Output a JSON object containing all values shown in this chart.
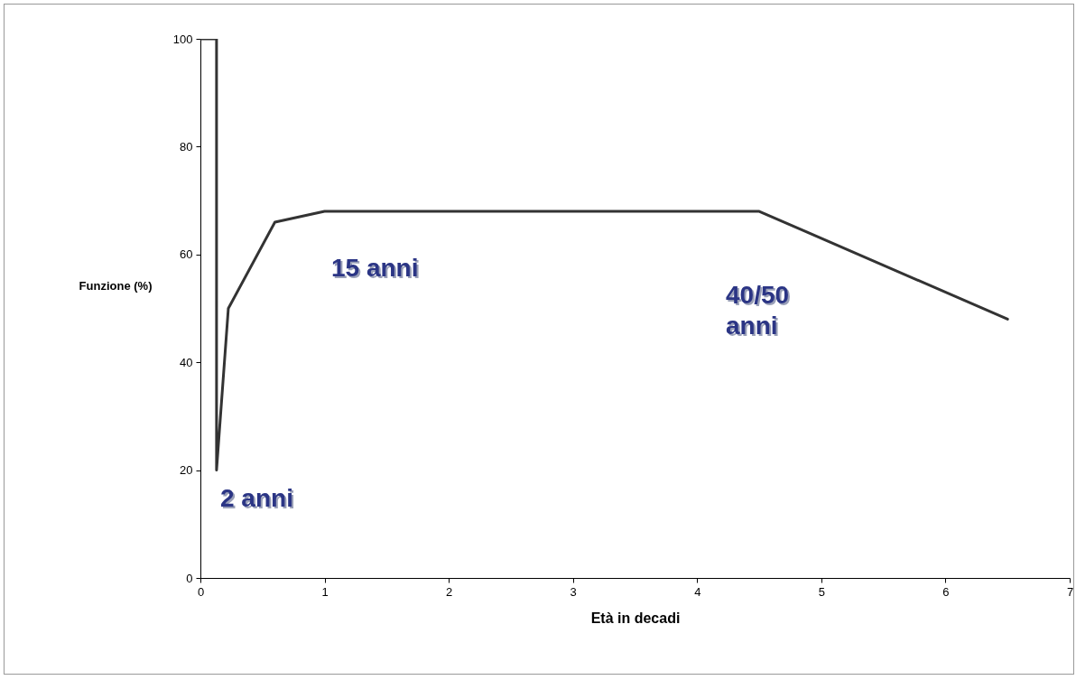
{
  "chart_data": {
    "type": "line",
    "xlabel": "Età in decadi",
    "ylabel": "Funzione (%)",
    "x": [
      0,
      0.13,
      0.13,
      0.225,
      0.6,
      1,
      4.5,
      6.5
    ],
    "series": [
      {
        "color": "#333333",
        "values": [
          100,
          100,
          20,
          50,
          66,
          68,
          68,
          48
        ]
      }
    ],
    "xlim": [
      0,
      7
    ],
    "xticks": [
      0,
      1,
      2,
      3,
      4,
      5,
      6,
      7
    ],
    "ylim": [
      0,
      100
    ],
    "yticks": [
      0,
      20,
      40,
      60,
      80,
      100
    ],
    "grid": false,
    "legend": false,
    "marker": "none",
    "line_style": "solid",
    "annotations": [
      "2 anni",
      "15 anni",
      "40/50\nanni"
    ]
  }
}
